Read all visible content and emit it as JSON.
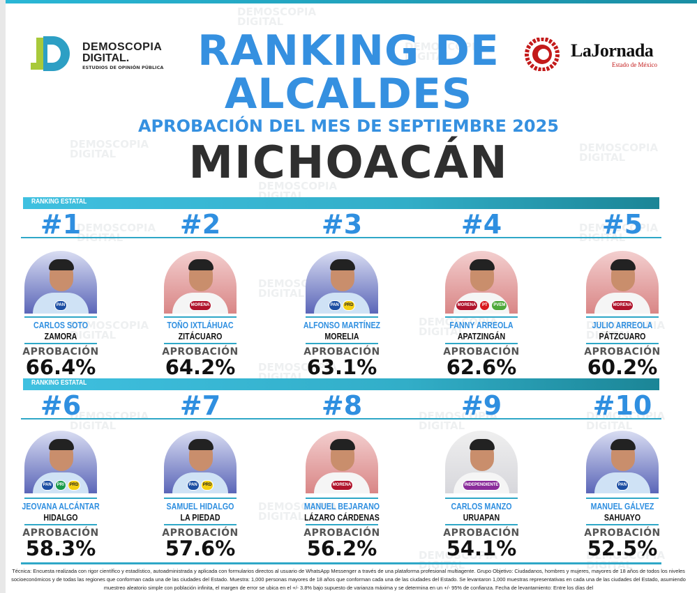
{
  "header": {
    "left_logo": {
      "line1": "DEMOSCOPIA",
      "line2": "DIGITAL.",
      "line3": "ESTUDIOS DE OPINIÓN PÚBLICA"
    },
    "right_logo": {
      "name": "LaJornada",
      "sub": "Estado de México"
    },
    "title_line1": "RANKING DE",
    "title_line2": "ALCALDES",
    "subtitle": "APROBACIÓN DEL MES DE SEPTIEMBRE 2025",
    "state": "MICHOACÁN"
  },
  "watermark": {
    "line1": "DEMOSCOPIA",
    "line2": "DIGITAL"
  },
  "section_label": "RANKING ESTATAL",
  "approval_label": "APROBACIÓN",
  "colors": {
    "accent": "#3590e0",
    "bar": "#32aec8",
    "title_dark": "#2f2f2f"
  },
  "mayors": [
    {
      "rank": "#1",
      "name": "CARLOS SOTO",
      "city": "ZAMORA",
      "approval": "66.4%",
      "bg": "blue",
      "parties": [
        "PAN"
      ]
    },
    {
      "rank": "#2",
      "name": "TOÑO IXTLÁHUAC",
      "city": "ZITÁCUARO",
      "approval": "64.2%",
      "bg": "red",
      "parties": [
        "MORENA"
      ]
    },
    {
      "rank": "#3",
      "name": "ALFONSO MARTÍNEZ",
      "city": "MORELIA",
      "approval": "63.1%",
      "bg": "blue",
      "parties": [
        "PAN",
        "PRD"
      ]
    },
    {
      "rank": "#4",
      "name": "FANNY ARREOLA",
      "city": "APATZINGÁN",
      "approval": "62.6%",
      "bg": "red",
      "parties": [
        "MORENA",
        "PT",
        "PVEM"
      ]
    },
    {
      "rank": "#5",
      "name": "JULIO ARREOLA",
      "city": "PÁTZCUARO",
      "approval": "60.2%",
      "bg": "red",
      "parties": [
        "MORENA"
      ]
    },
    {
      "rank": "#6",
      "name": "JEOVANA ALCÁNTAR",
      "city": "HIDALGO",
      "approval": "58.3%",
      "bg": "blue",
      "parties": [
        "PAN",
        "PRI",
        "PRD"
      ]
    },
    {
      "rank": "#7",
      "name": "SAMUEL HIDALGO",
      "city": "LA PIEDAD",
      "approval": "57.6%",
      "bg": "blue",
      "parties": [
        "PAN",
        "PRD"
      ]
    },
    {
      "rank": "#8",
      "name": "MANUEL BEJARANO",
      "city": "LÁZARO CÁRDENAS",
      "approval": "56.2%",
      "bg": "red",
      "parties": [
        "MORENA"
      ]
    },
    {
      "rank": "#9",
      "name": "CARLOS MANZO",
      "city": "URUAPAN",
      "approval": "54.1%",
      "bg": "purple",
      "parties": [
        "INDEPENDIENTE"
      ]
    },
    {
      "rank": "#10",
      "name": "MANUEL GÁLVEZ",
      "city": "SAHUAYO",
      "approval": "52.5%",
      "bg": "blue",
      "parties": [
        "PAN"
      ]
    }
  ],
  "footer": "Técnica: Encuesta realizada con rigor científico y estadístico, autoadministrada y aplicada con formularios directos al usuario de WhatsApp Messenger a través de una plataforma profesional multiagente. Grupo Objetivo: Ciudadanos, hombres y mujeres, mayores de 18 años de todos los niveles socioeconómicos y de todas las regiones que conforman cada una de las ciudades del Estado. Muestra: 1,000 personas mayores de 18 años que conforman cada una de las ciudades del Estado. Se levantaron 1,000 muestras representativas en cada una de las ciudades del Estado, asumiendo muestreo aleatorio simple con población infinita, el margen de error se ubica en el +/- 3.8% bajo supuesto de varianza máxima y se determina en un +/- 95% de confianza. Fecha de levantamiento: Entre los días del"
}
